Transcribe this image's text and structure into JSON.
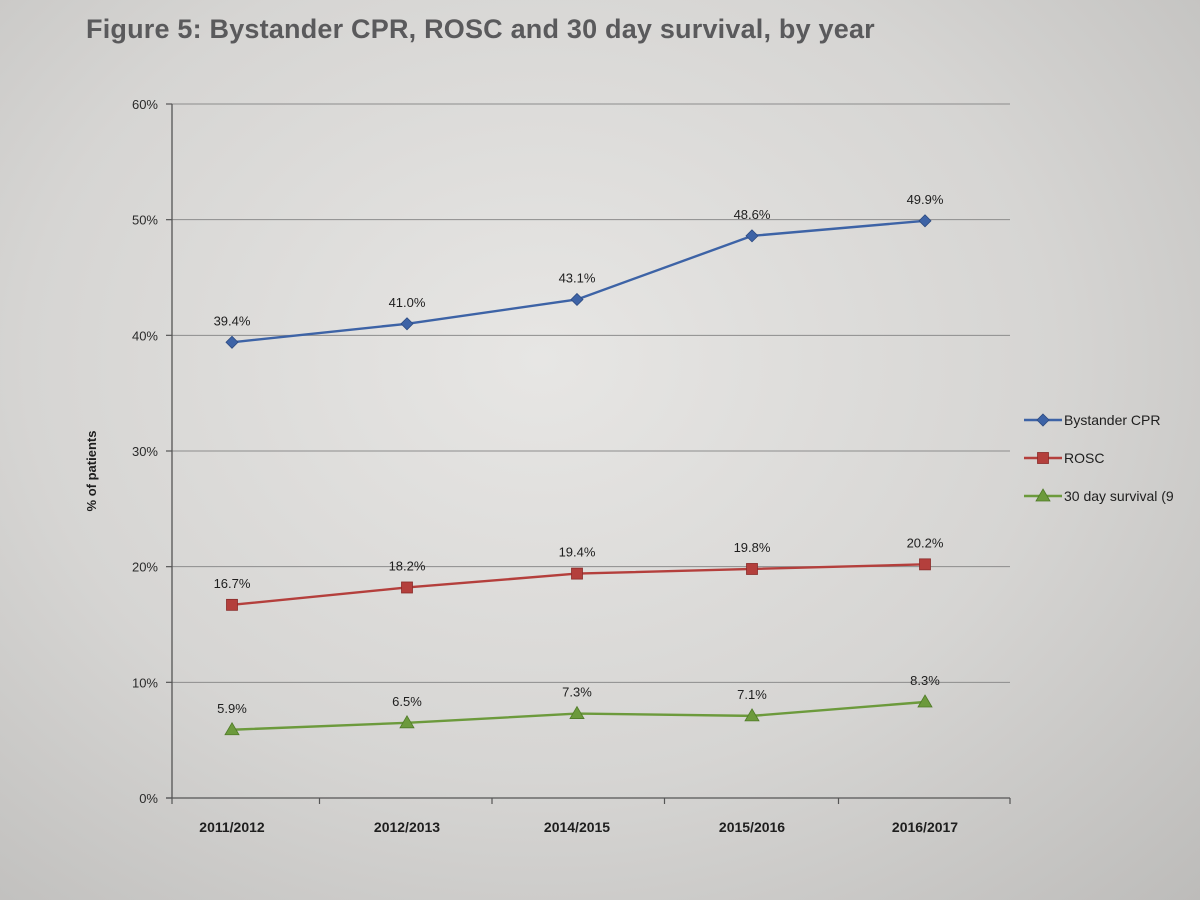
{
  "figure_title": "Figure 5: Bystander CPR, ROSC and 30 day survival, by year",
  "chart_data": {
    "type": "line",
    "title": "Figure 5: Bystander CPR, ROSC and 30 day survival, by year",
    "xlabel": "",
    "ylabel": "% of patients",
    "ylim": [
      0,
      60
    ],
    "yticks": [
      "0%",
      "10%",
      "20%",
      "30%",
      "40%",
      "50%",
      "60%"
    ],
    "grid": true,
    "legend_position": "right",
    "categories": [
      "2011/2012",
      "2012/2013",
      "2014/2015",
      "2015/2016",
      "2016/2017"
    ],
    "series": [
      {
        "name": "Bystander CPR",
        "color": "#3d63a6",
        "marker": "diamond",
        "values": [
          39.4,
          41.0,
          43.1,
          48.6,
          49.9
        ],
        "labels": [
          "39.4%",
          "41.0%",
          "43.1%",
          "48.6%",
          "49.9%"
        ]
      },
      {
        "name": "ROSC",
        "color": "#b43f3c",
        "marker": "square",
        "values": [
          16.7,
          18.2,
          19.4,
          19.8,
          20.2
        ],
        "labels": [
          "16.7%",
          "18.2%",
          "19.4%",
          "19.8%",
          "20.2%"
        ]
      },
      {
        "name": "30 day survival (9",
        "color": "#6c9a3c",
        "marker": "triangle",
        "values": [
          5.9,
          6.5,
          7.3,
          7.1,
          8.3
        ],
        "labels": [
          "5.9%",
          "6.5%",
          "7.3%",
          "7.1%",
          "8.3%"
        ]
      }
    ]
  }
}
